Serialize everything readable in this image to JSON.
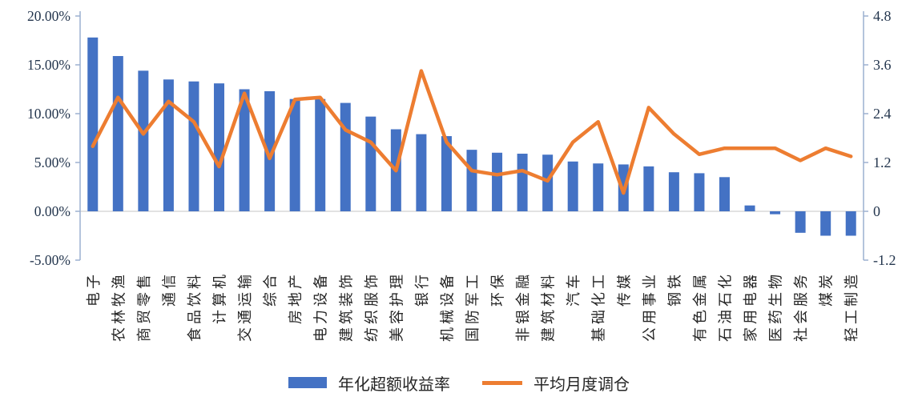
{
  "chart_data": {
    "type": "bar+line",
    "categories": [
      "电子",
      "农林牧渔",
      "商贸零售",
      "通信",
      "食品饮料",
      "计算机",
      "交通运输",
      "综合",
      "房地产",
      "电力设备",
      "建筑装饰",
      "纺织服饰",
      "美容护理",
      "银行",
      "机械设备",
      "国防军工",
      "环保",
      "非银金融",
      "建筑材料",
      "汽车",
      "基础化工",
      "传媒",
      "公用事业",
      "钢铁",
      "有色金属",
      "石油石化",
      "家用电器",
      "医药生物",
      "社会服务",
      "煤炭",
      "轻工制造"
    ],
    "series": [
      {
        "name": "年化超额收益率",
        "type": "bar",
        "axis": "left",
        "unit": "%",
        "values": [
          17.8,
          15.9,
          14.4,
          13.5,
          13.3,
          13.1,
          12.5,
          12.3,
          11.5,
          11.5,
          11.1,
          9.7,
          8.4,
          7.9,
          7.7,
          6.3,
          6.0,
          5.9,
          5.8,
          5.1,
          4.9,
          4.8,
          4.6,
          4.0,
          3.9,
          3.5,
          0.6,
          -0.3,
          -2.2,
          -2.5,
          -2.5
        ]
      },
      {
        "name": "平均月度调仓",
        "type": "line",
        "axis": "right",
        "values": [
          1.6,
          2.8,
          1.9,
          2.7,
          2.2,
          1.1,
          2.9,
          1.3,
          2.75,
          2.8,
          2.0,
          1.7,
          1.0,
          3.45,
          1.7,
          1.0,
          0.9,
          1.0,
          0.75,
          1.7,
          2.2,
          0.45,
          2.55,
          1.9,
          1.4,
          1.55,
          1.55,
          1.55,
          1.25,
          1.55,
          1.35
        ]
      }
    ],
    "left_axis": {
      "min": -5,
      "max": 20,
      "ticks": [
        {
          "label": "20.00%",
          "value": 20
        },
        {
          "label": "15.00%",
          "value": 15
        },
        {
          "label": "10.00%",
          "value": 10
        },
        {
          "label": "5.00%",
          "value": 5
        },
        {
          "label": "0.00%",
          "value": 0
        },
        {
          "label": "-5.00%",
          "value": -5
        }
      ]
    },
    "right_axis": {
      "min": -1.2,
      "max": 4.8,
      "ticks": [
        {
          "label": "4.8",
          "value": 4.8
        },
        {
          "label": "3.6",
          "value": 3.6
        },
        {
          "label": "2.4",
          "value": 2.4
        },
        {
          "label": "1.2",
          "value": 1.2
        },
        {
          "label": "0",
          "value": 0
        },
        {
          "label": "-1.2",
          "value": -1.2
        }
      ]
    },
    "legend_position": "bottom",
    "grid": "zero-line-only",
    "title": ""
  },
  "colors": {
    "bar": "#4472C4",
    "line": "#ED7D31",
    "axis_line": "#9CB0D0",
    "zero_line": "#D9D9D9",
    "tick_text": "#24364E",
    "category_text": "#262626",
    "legend_text": "#262626",
    "background": "#FFFFFF"
  }
}
